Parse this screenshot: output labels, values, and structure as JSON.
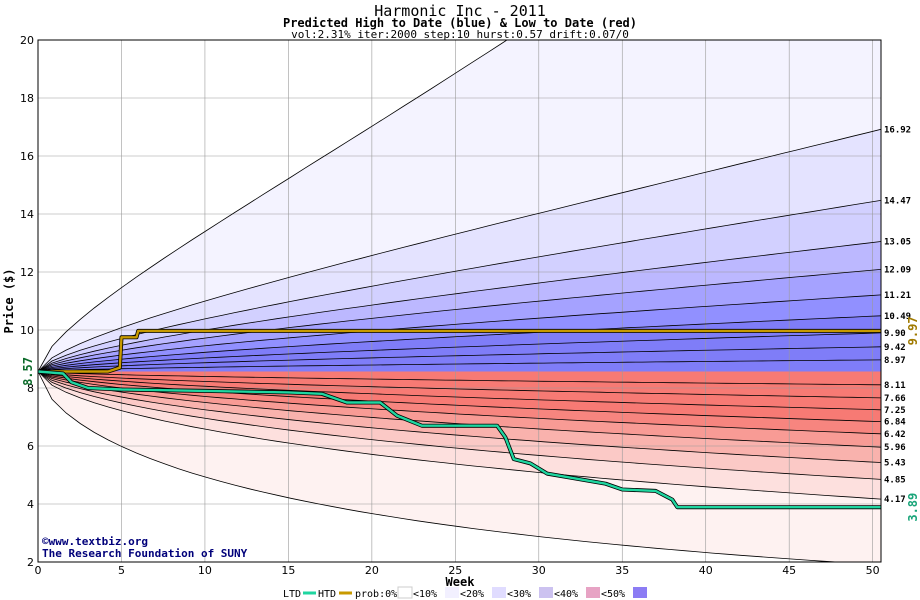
{
  "chart_data": {
    "type": "area",
    "title": "Harmonic Inc - 2011",
    "subtitle": "Predicted High to Date (blue) &  Low to Date (red)",
    "params": "vol:2.31% iter:2000 step:10 hurst:0.57 drift:0.07/0",
    "xlabel": "Week",
    "ylabel": "Price ($)",
    "xlim": [
      0,
      50.5
    ],
    "ylim": [
      2,
      20
    ],
    "x_ticks": [
      0,
      5,
      10,
      15,
      20,
      25,
      30,
      35,
      40,
      45,
      50
    ],
    "y_ticks": [
      2,
      4,
      6,
      8,
      10,
      12,
      14,
      16,
      18,
      20
    ],
    "grid": true,
    "start_price": 8.57,
    "start_label": "8.57",
    "upper_quantiles": [
      {
        "end": 9.9,
        "label": "9.90",
        "prob": 0.5
      },
      {
        "end": 10.49,
        "label": "10.49",
        "prob": 0.4
      },
      {
        "end": 11.21,
        "label": "11.21",
        "prob": 0.3
      },
      {
        "end": 12.09,
        "label": "12.09",
        "prob": 0.2
      },
      {
        "end": 13.05,
        "label": "13.05",
        "prob": 0.1
      },
      {
        "end": 14.47,
        "label": "14.47",
        "prob": 0.05
      },
      {
        "end": 16.92,
        "label": "16.92",
        "prob": 0.01
      },
      {
        "end": 29.0,
        "label": "",
        "prob": 0.0
      }
    ],
    "upper_inner": [
      {
        "end": 9.42,
        "label": "9.42"
      },
      {
        "end": 8.97,
        "label": "8.97"
      }
    ],
    "lower_quantiles": [
      {
        "end": 8.11,
        "label": "8.11",
        "prob": 0.5
      },
      {
        "end": 7.66,
        "label": "7.66",
        "prob": 0.5
      },
      {
        "end": 7.25,
        "label": "7.25",
        "prob": 0.4
      },
      {
        "end": 6.84,
        "label": "6.84",
        "prob": 0.4
      },
      {
        "end": 6.42,
        "label": "6.42",
        "prob": 0.3
      },
      {
        "end": 5.96,
        "label": "5.96",
        "prob": 0.3
      },
      {
        "end": 5.43,
        "label": "5.43",
        "prob": 0.2
      },
      {
        "end": 4.85,
        "label": "4.85",
        "prob": 0.1
      },
      {
        "end": 4.17,
        "label": "4.17",
        "prob": 0.05
      },
      {
        "end": 1.9,
        "label": "",
        "prob": 0.0
      }
    ],
    "htd_series": {
      "name": "HTD",
      "color": "#c89a00",
      "end_label": "9.97",
      "points": [
        [
          0,
          8.57
        ],
        [
          4.2,
          8.57
        ],
        [
          4.9,
          8.7
        ],
        [
          5,
          9.75
        ],
        [
          5.9,
          9.75
        ],
        [
          6,
          9.97
        ],
        [
          50.5,
          9.97
        ]
      ]
    },
    "ltd_series": {
      "name": "LTD",
      "color": "#1fd6a0",
      "end_label": "3.89",
      "points": [
        [
          0,
          8.57
        ],
        [
          1.5,
          8.5
        ],
        [
          2,
          8.2
        ],
        [
          3,
          8.0
        ],
        [
          5,
          7.95
        ],
        [
          10,
          7.9
        ],
        [
          15,
          7.85
        ],
        [
          17,
          7.8
        ],
        [
          18.5,
          7.5
        ],
        [
          20.5,
          7.5
        ],
        [
          21.5,
          7.05
        ],
        [
          23,
          6.7
        ],
        [
          27.5,
          6.7
        ],
        [
          28,
          6.3
        ],
        [
          28.5,
          5.55
        ],
        [
          29.5,
          5.4
        ],
        [
          30.5,
          5.05
        ],
        [
          32,
          4.9
        ],
        [
          34,
          4.7
        ],
        [
          35,
          4.5
        ],
        [
          37,
          4.45
        ],
        [
          38,
          4.15
        ],
        [
          38.3,
          3.89
        ],
        [
          50.5,
          3.89
        ]
      ]
    }
  },
  "credit": {
    "line1": "©www.textbiz.org",
    "line2": "The Research Foundation of SUNY"
  },
  "legend": {
    "ltd_label": "LTD",
    "htd_label": "HTD",
    "prob_label": "prob:0%",
    "bins": [
      {
        "label": "<10%",
        "color": "#f2f0ff"
      },
      {
        "label": "<20%",
        "color": "#e0dcff"
      },
      {
        "label": "<30%",
        "color": "#ccc2f0"
      },
      {
        "label": "<40%",
        "color": "#e7a3c4"
      },
      {
        "label": "<50%",
        "color": "#8c7cf4"
      }
    ],
    "colors": {
      "prob0_blue": "#ffffff",
      "prob0_red": "#ffffff"
    }
  },
  "colors": {
    "blue_fills": [
      "#f4f3ff",
      "#e4e3ff",
      "#d2d0ff",
      "#bcb8ff",
      "#a5a2ff",
      "#9190ff",
      "#7f7df8"
    ],
    "red_fills": [
      "#fef2f1",
      "#fde0de",
      "#fbc9c6",
      "#f9b2ad",
      "#f89b95",
      "#f7857f",
      "#f77a74"
    ],
    "band_line": "#000000",
    "grid": "#9a9a9a"
  }
}
